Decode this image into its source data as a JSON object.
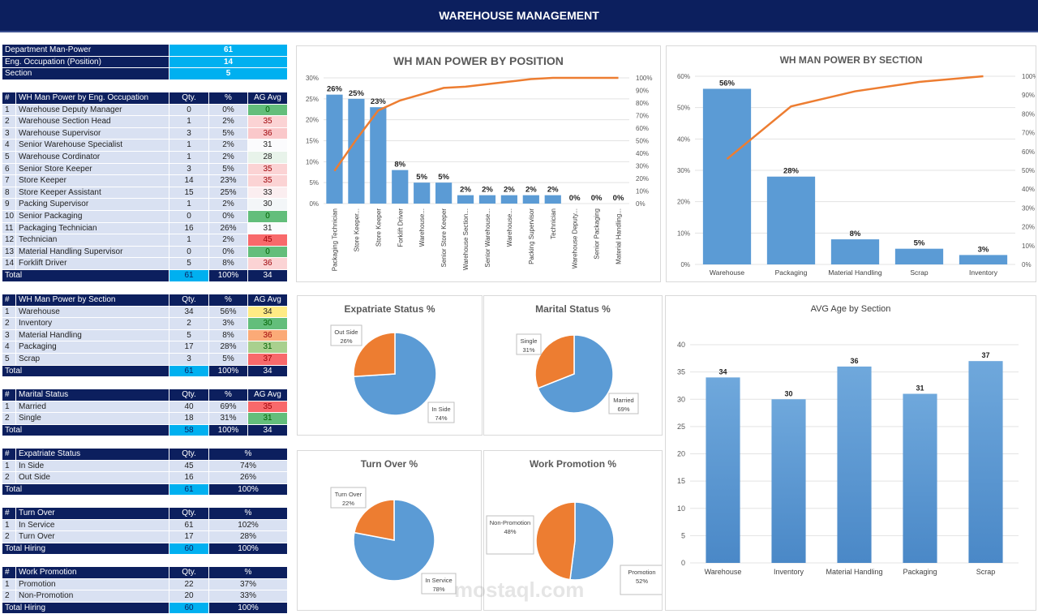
{
  "header": {
    "title": "WAREHOUSE MANAGEMENT"
  },
  "kpis": [
    {
      "label": "Department Man-Power",
      "value": "61"
    },
    {
      "label": "Eng. Occupation (Position)",
      "value": "14"
    },
    {
      "label": "Section",
      "value": "5"
    }
  ],
  "tables": [
    {
      "id": "occupation",
      "top": 114,
      "headers": [
        "#",
        "WH Man Power by Eng. Occupation",
        "Qty.",
        "%",
        "AG Avg"
      ],
      "rows": [
        [
          "1",
          "Warehouse Deputy Manager",
          "0",
          "0%",
          "0"
        ],
        [
          "2",
          "Warehouse Section Head",
          "1",
          "2%",
          "35"
        ],
        [
          "3",
          "Warehouse Supervisor",
          "3",
          "5%",
          "36"
        ],
        [
          "4",
          "Senior Warehouse Specialist",
          "1",
          "2%",
          "31"
        ],
        [
          "5",
          "Warehouse Cordinator",
          "1",
          "2%",
          "28"
        ],
        [
          "6",
          "Senior Store Keeper",
          "3",
          "5%",
          "35"
        ],
        [
          "7",
          "Store Keeper",
          "14",
          "23%",
          "35"
        ],
        [
          "8",
          "Store Keeper Assistant",
          "15",
          "25%",
          "33"
        ],
        [
          "9",
          "Packing Supervisor",
          "1",
          "2%",
          "30"
        ],
        [
          "10",
          "Senior Packaging",
          "0",
          "0%",
          "0"
        ],
        [
          "11",
          "Packaging Technician",
          "16",
          "26%",
          "31"
        ],
        [
          "12",
          "Technician",
          "1",
          "2%",
          "45"
        ],
        [
          "13",
          "Material Handling Supervisor",
          "0",
          "0%",
          "0"
        ],
        [
          "14",
          "Forklift Driver",
          "5",
          "8%",
          "36"
        ]
      ],
      "ag_colors": [
        "#63be7b",
        "#fbd3d4",
        "#fac8ca",
        "#fbfbfd",
        "#e8f3ea",
        "#fbd3d4",
        "#fbd3d4",
        "#fbeef0",
        "#f3f6f8",
        "#63be7b",
        "#fbfbfd",
        "#f8696b",
        "#63be7b",
        "#fbd3d4"
      ],
      "total": [
        "Total",
        "61",
        "100%",
        "34"
      ]
    },
    {
      "id": "section",
      "top": 363,
      "headers": [
        "#",
        "WH Man Power by Section",
        "Qty.",
        "%",
        "AG Avg"
      ],
      "rows": [
        [
          "1",
          "Warehouse",
          "34",
          "56%",
          "34"
        ],
        [
          "2",
          "Inventory",
          "2",
          "3%",
          "30"
        ],
        [
          "3",
          "Material Handling",
          "5",
          "8%",
          "36"
        ],
        [
          "4",
          "Packaging",
          "17",
          "28%",
          "31"
        ],
        [
          "5",
          "Scrap",
          "3",
          "5%",
          "37"
        ]
      ],
      "ag_colors": [
        "#ffeb84",
        "#63be7b",
        "#fbaa77",
        "#a9d08e",
        "#f8696b"
      ],
      "total": [
        "Total",
        "61",
        "100%",
        "34"
      ]
    },
    {
      "id": "marital",
      "top": 480,
      "headers": [
        "#",
        "Marital Status",
        "Qty.",
        "%",
        "AG Avg"
      ],
      "rows": [
        [
          "1",
          "Married",
          "40",
          "69%",
          "35"
        ],
        [
          "2",
          "Single",
          "18",
          "31%",
          "31"
        ]
      ],
      "ag_colors": [
        "#f8696b",
        "#63be7b"
      ],
      "total": [
        "Total",
        "58",
        "100%",
        "34"
      ]
    },
    {
      "id": "expatriate",
      "top": 553,
      "headers": [
        "#",
        "Expatriate Status",
        "Qty.",
        "%"
      ],
      "rows": [
        [
          "1",
          "In Side",
          "45",
          "74%"
        ],
        [
          "2",
          "Out Side",
          "16",
          "26%"
        ]
      ],
      "total": [
        "Total",
        "61",
        "100%"
      ]
    },
    {
      "id": "turnover",
      "top": 626,
      "headers": [
        "#",
        "Turn Over",
        "Qty.",
        "%"
      ],
      "rows": [
        [
          "1",
          "In Service",
          "61",
          "102%"
        ],
        [
          "2",
          "Turn Over",
          "17",
          "28%"
        ]
      ],
      "total": [
        "Total Hiring",
        "60",
        "100%"
      ]
    },
    {
      "id": "promotion",
      "top": 699,
      "headers": [
        "#",
        "Work Promotion",
        "Qty.",
        "%"
      ],
      "rows": [
        [
          "1",
          "Promotion",
          "22",
          "37%"
        ],
        [
          "2",
          "Non-Promotion",
          "20",
          "33%"
        ]
      ],
      "total": [
        "Total Hiring",
        "60",
        "100%"
      ]
    }
  ],
  "colors": {
    "bar": "#5b9bd5",
    "line": "#ed7d31",
    "navy": "#0c1f5e",
    "cyan": "#00b0f0"
  },
  "chart_data": [
    {
      "id": "position",
      "type": "bar",
      "title": "WH MAN POWER BY POSITION",
      "categories": [
        "Packaging Technician",
        "Store Keeper...",
        "Store Keeper",
        "Forklift Driver",
        "Warehouse...",
        "Senior Store Keeper",
        "Warehouse Section...",
        "Senior Warehouse...",
        "Warehouse...",
        "Packing Supervisor",
        "Technician",
        "Warehouse Deputy...",
        "Senior Packaging",
        "Material Handling..."
      ],
      "values": [
        26,
        25,
        23,
        8,
        5,
        5,
        2,
        2,
        2,
        2,
        2,
        0,
        0,
        0
      ],
      "data_labels": [
        "26%",
        "25%",
        "23%",
        "8%",
        "5%",
        "5%",
        "2%",
        "2%",
        "2%",
        "2%",
        "2%",
        "0%",
        "0%",
        "0%"
      ],
      "cumulative": [
        26,
        51,
        74,
        82,
        87,
        92,
        93,
        95,
        97,
        99,
        100,
        100,
        100,
        100
      ],
      "ylim": [
        0,
        30
      ],
      "yticks": [
        "0%",
        "5%",
        "10%",
        "15%",
        "20%",
        "25%",
        "30%"
      ],
      "y2lim": [
        0,
        100
      ],
      "y2ticks": [
        "0%",
        "10%",
        "20%",
        "30%",
        "40%",
        "50%",
        "60%",
        "70%",
        "80%",
        "90%",
        "100%"
      ],
      "grid": true
    },
    {
      "id": "section",
      "type": "bar",
      "title": "WH MAN POWER BY SECTION",
      "categories": [
        "Warehouse",
        "Packaging",
        "Material Handling",
        "Scrap",
        "Inventory"
      ],
      "values": [
        56,
        28,
        8,
        5,
        3
      ],
      "data_labels": [
        "56%",
        "28%",
        "8%",
        "5%",
        "3%"
      ],
      "cumulative": [
        56,
        84,
        92,
        97,
        100
      ],
      "ylim": [
        0,
        60
      ],
      "yticks": [
        "0%",
        "10%",
        "20%",
        "30%",
        "40%",
        "50%",
        "60%"
      ],
      "y2lim": [
        0,
        100
      ],
      "y2ticks": [
        "0%",
        "10%",
        "20%",
        "30%",
        "40%",
        "50%",
        "60%",
        "70%",
        "80%",
        "90%",
        "100%"
      ],
      "grid": true
    },
    {
      "id": "expat",
      "type": "pie",
      "title": "Expatriate Status %",
      "slices": [
        {
          "label": "In Side",
          "value": 74,
          "text": "74%"
        },
        {
          "label": "Out Side",
          "value": 26,
          "text": "26%"
        }
      ]
    },
    {
      "id": "marital",
      "type": "pie",
      "title": "Marital Status %",
      "slices": [
        {
          "label": "Married",
          "value": 69,
          "text": "69%"
        },
        {
          "label": "Single",
          "value": 31,
          "text": "31%"
        }
      ]
    },
    {
      "id": "turnover",
      "type": "pie",
      "title": "Turn Over %",
      "slices": [
        {
          "label": "In Service",
          "value": 78,
          "text": "78%"
        },
        {
          "label": "Turn Over",
          "value": 22,
          "text": "22%"
        }
      ]
    },
    {
      "id": "promotion",
      "type": "pie",
      "title": "Work Promotion %",
      "slices": [
        {
          "label": "Promotion",
          "value": 52,
          "text": "52%"
        },
        {
          "label": "Non-Promotion",
          "value": 48,
          "text": "48%"
        }
      ]
    },
    {
      "id": "age",
      "type": "bar",
      "title": "AVG Age by Section",
      "categories": [
        "Warehouse",
        "Inventory",
        "Material Handling",
        "Packaging",
        "Scrap"
      ],
      "values": [
        34,
        30,
        36,
        31,
        37
      ],
      "data_labels": [
        "34",
        "30",
        "36",
        "31",
        "37"
      ],
      "ylim": [
        0,
        40
      ],
      "yticks": [
        "0",
        "5",
        "10",
        "15",
        "20",
        "25",
        "30",
        "35",
        "40"
      ],
      "grid": true
    }
  ],
  "watermark": "mostaql.com"
}
